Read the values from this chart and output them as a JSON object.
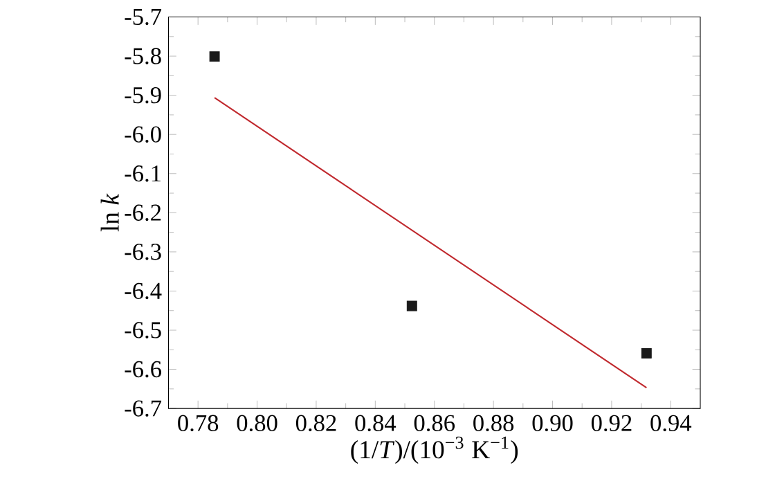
{
  "chart_data": {
    "type": "scatter",
    "xlabel": "(1/*T*)/(10$^{−3}$ K$^{−1}$)",
    "ylabel": "ln *k*",
    "xlim": [
      0.77,
      0.95
    ],
    "ylim": [
      -6.7,
      -5.7
    ],
    "xticks": [
      0.78,
      {
        "value": 0.8,
        "label": "0.80"
      },
      0.82,
      0.84,
      0.86,
      0.88,
      {
        "value": 0.9,
        "label": "0.90"
      },
      0.92,
      0.94
    ],
    "yticks": [
      -6.7,
      -6.6,
      -6.5,
      -6.4,
      -6.3,
      -6.2,
      -6.1,
      {
        "value": -6.0,
        "label": "-6.0"
      },
      -5.9,
      -5.8,
      -5.7
    ],
    "grid": false,
    "marker": "square",
    "series": [
      {
        "color": "#1a1a1a",
        "x": [
          0.7856,
          0.8524,
          0.9318
        ],
        "values": [
          -5.801,
          -6.438,
          -6.559
        ]
      },
      {
        "type": "line",
        "color": "#c0282d",
        "marker": "none",
        "x": [
          0.7856,
          0.9318
        ],
        "values": [
          -5.906,
          -6.647
        ]
      }
    ]
  }
}
